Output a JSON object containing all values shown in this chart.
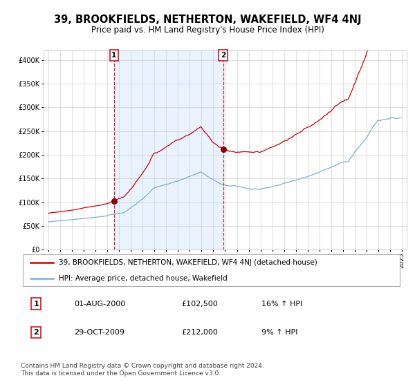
{
  "title": "39, BROOKFIELDS, NETHERTON, WAKEFIELD, WF4 4NJ",
  "subtitle": "Price paid vs. HM Land Registry's House Price Index (HPI)",
  "legend_line1": "39, BROOKFIELDS, NETHERTON, WAKEFIELD, WF4 4NJ (detached house)",
  "legend_line2": "HPI: Average price, detached house, Wakefield",
  "transaction1_date": "01-AUG-2000",
  "transaction1_price": "£102,500",
  "transaction1_hpi": "16% ↑ HPI",
  "transaction2_date": "29-OCT-2009",
  "transaction2_price": "£212,000",
  "transaction2_hpi": "9% ↑ HPI",
  "footer": "Contains HM Land Registry data © Crown copyright and database right 2024.\nThis data is licensed under the Open Government Licence v3.0.",
  "red_color": "#cc0000",
  "blue_color": "#7ab0d4",
  "bg_shade_color": "#ddeeff",
  "marker_color": "#880000",
  "dashed_color": "#cc0000",
  "grid_color": "#cccccc",
  "title_fontsize": 10.5,
  "subtitle_fontsize": 8.5,
  "tick_fontsize": 7,
  "legend_fontsize": 7.5,
  "footer_fontsize": 6.5,
  "transaction1_year": 2000.58,
  "transaction2_year": 2009.83,
  "transaction1_value": 102500,
  "transaction2_value": 212000,
  "ylim_max": 420000,
  "xlim_min": 1994.6,
  "xlim_max": 2025.4
}
